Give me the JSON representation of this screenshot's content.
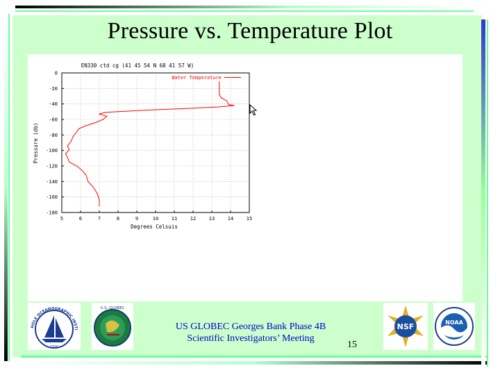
{
  "slide": {
    "title": "Pressure vs. Temperature Plot",
    "footer_line1": "US GLOBEC Georges Bank Phase 4B",
    "footer_line2": "Scientific Investigators’ Meeting",
    "page_number": "15"
  },
  "logos": {
    "whoi": {
      "text": "WOODS HOLE OCEANOGRAPHIC INSTITUTION",
      "year": "1930"
    },
    "globec": {
      "text": "U.S. GLOBEC"
    },
    "nsf": {
      "text": "NSF"
    },
    "noaa": {
      "text": "NOAA"
    }
  },
  "colors": {
    "slide_bg": "#ccffcc",
    "line": "#ff0000",
    "footer_text": "#0000cc"
  },
  "chart_data": {
    "type": "line",
    "title": "EN330 ctd cg (41 45 54 N 68 41 57 W)",
    "xlabel": "Degrees Celsuis",
    "ylabel": "Pressure (db)",
    "xlim": [
      5,
      15
    ],
    "ylim": [
      -180,
      0
    ],
    "xticks": [
      "5",
      "6",
      "7",
      "8",
      "9",
      "10",
      "11",
      "12",
      "13",
      "14",
      "15"
    ],
    "yticks": [
      "0",
      "-20",
      "-40",
      "-60",
      "-80",
      "-100",
      "-120",
      "-140",
      "-160",
      "-180"
    ],
    "grid": true,
    "legend_position": "top-right",
    "series": [
      {
        "name": "Water Temperature",
        "color": "#ff0000",
        "points": [
          [
            13.4,
            -11
          ],
          [
            13.4,
            -20
          ],
          [
            13.4,
            -28
          ],
          [
            13.5,
            -32
          ],
          [
            13.8,
            -36
          ],
          [
            13.9,
            -41
          ],
          [
            14.2,
            -42
          ],
          [
            13.3,
            -44
          ],
          [
            11.5,
            -46
          ],
          [
            9.5,
            -48
          ],
          [
            8.0,
            -50
          ],
          [
            7.3,
            -51
          ],
          [
            7.0,
            -53
          ],
          [
            7.4,
            -56
          ],
          [
            7.2,
            -60
          ],
          [
            6.8,
            -64
          ],
          [
            6.3,
            -68
          ],
          [
            5.9,
            -72
          ],
          [
            5.8,
            -76
          ],
          [
            5.6,
            -82
          ],
          [
            5.5,
            -88
          ],
          [
            5.3,
            -94
          ],
          [
            5.4,
            -99
          ],
          [
            5.2,
            -104
          ],
          [
            5.3,
            -109
          ],
          [
            5.4,
            -115
          ],
          [
            5.8,
            -120
          ],
          [
            6.1,
            -126
          ],
          [
            6.3,
            -132
          ],
          [
            6.4,
            -140
          ],
          [
            6.7,
            -148
          ],
          [
            6.9,
            -156
          ],
          [
            7.0,
            -164
          ],
          [
            7.0,
            -172
          ]
        ]
      }
    ]
  }
}
